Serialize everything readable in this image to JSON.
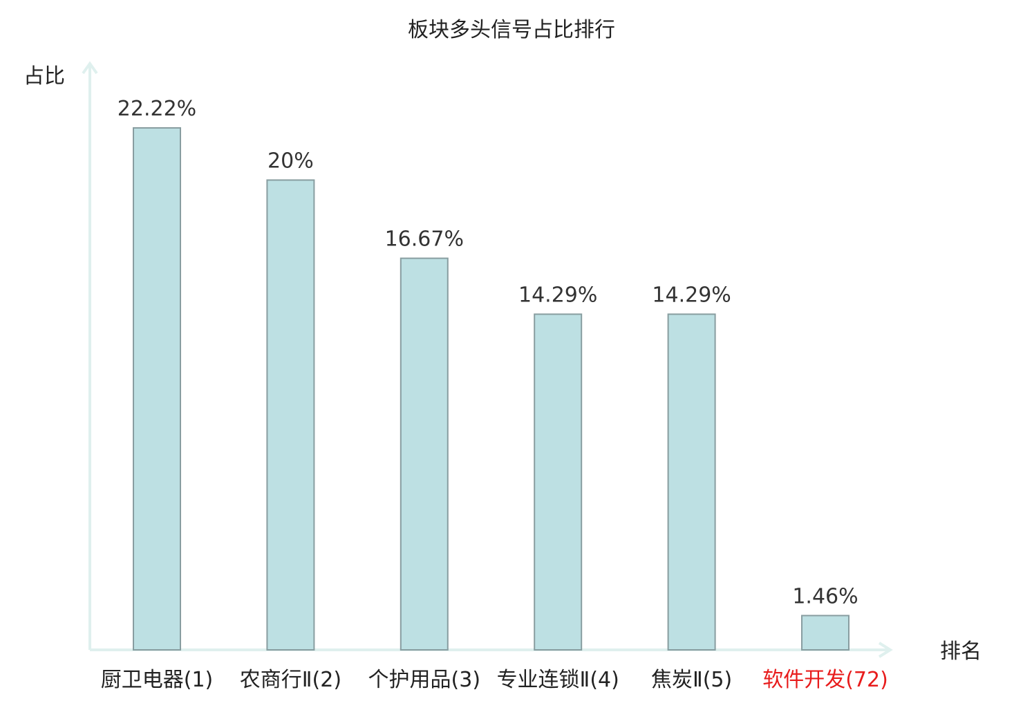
{
  "chart_data": {
    "type": "bar",
    "title": "板块多头信号占比排行",
    "ylabel": "占比",
    "xlabel": "排名",
    "ylim": [
      0,
      25
    ],
    "grid": false,
    "categories": [
      "厨卫电器(1)",
      "农商行Ⅱ(2)",
      "个护用品(3)",
      "专业连锁Ⅱ(4)",
      "焦炭Ⅱ(5)",
      "软件开发(72)"
    ],
    "values": [
      22.22,
      20,
      16.67,
      14.29,
      14.29,
      1.46
    ],
    "value_labels": [
      "22.22%",
      "20%",
      "16.67%",
      "14.29%",
      "14.29%",
      "1.46%"
    ],
    "highlight_index": 5
  },
  "colors": {
    "bar_fill": "#bde0e3",
    "bar_stroke": "#889da0",
    "axis": "#dff0ee",
    "highlight_text": "#e81c1c",
    "text": "#222222"
  }
}
